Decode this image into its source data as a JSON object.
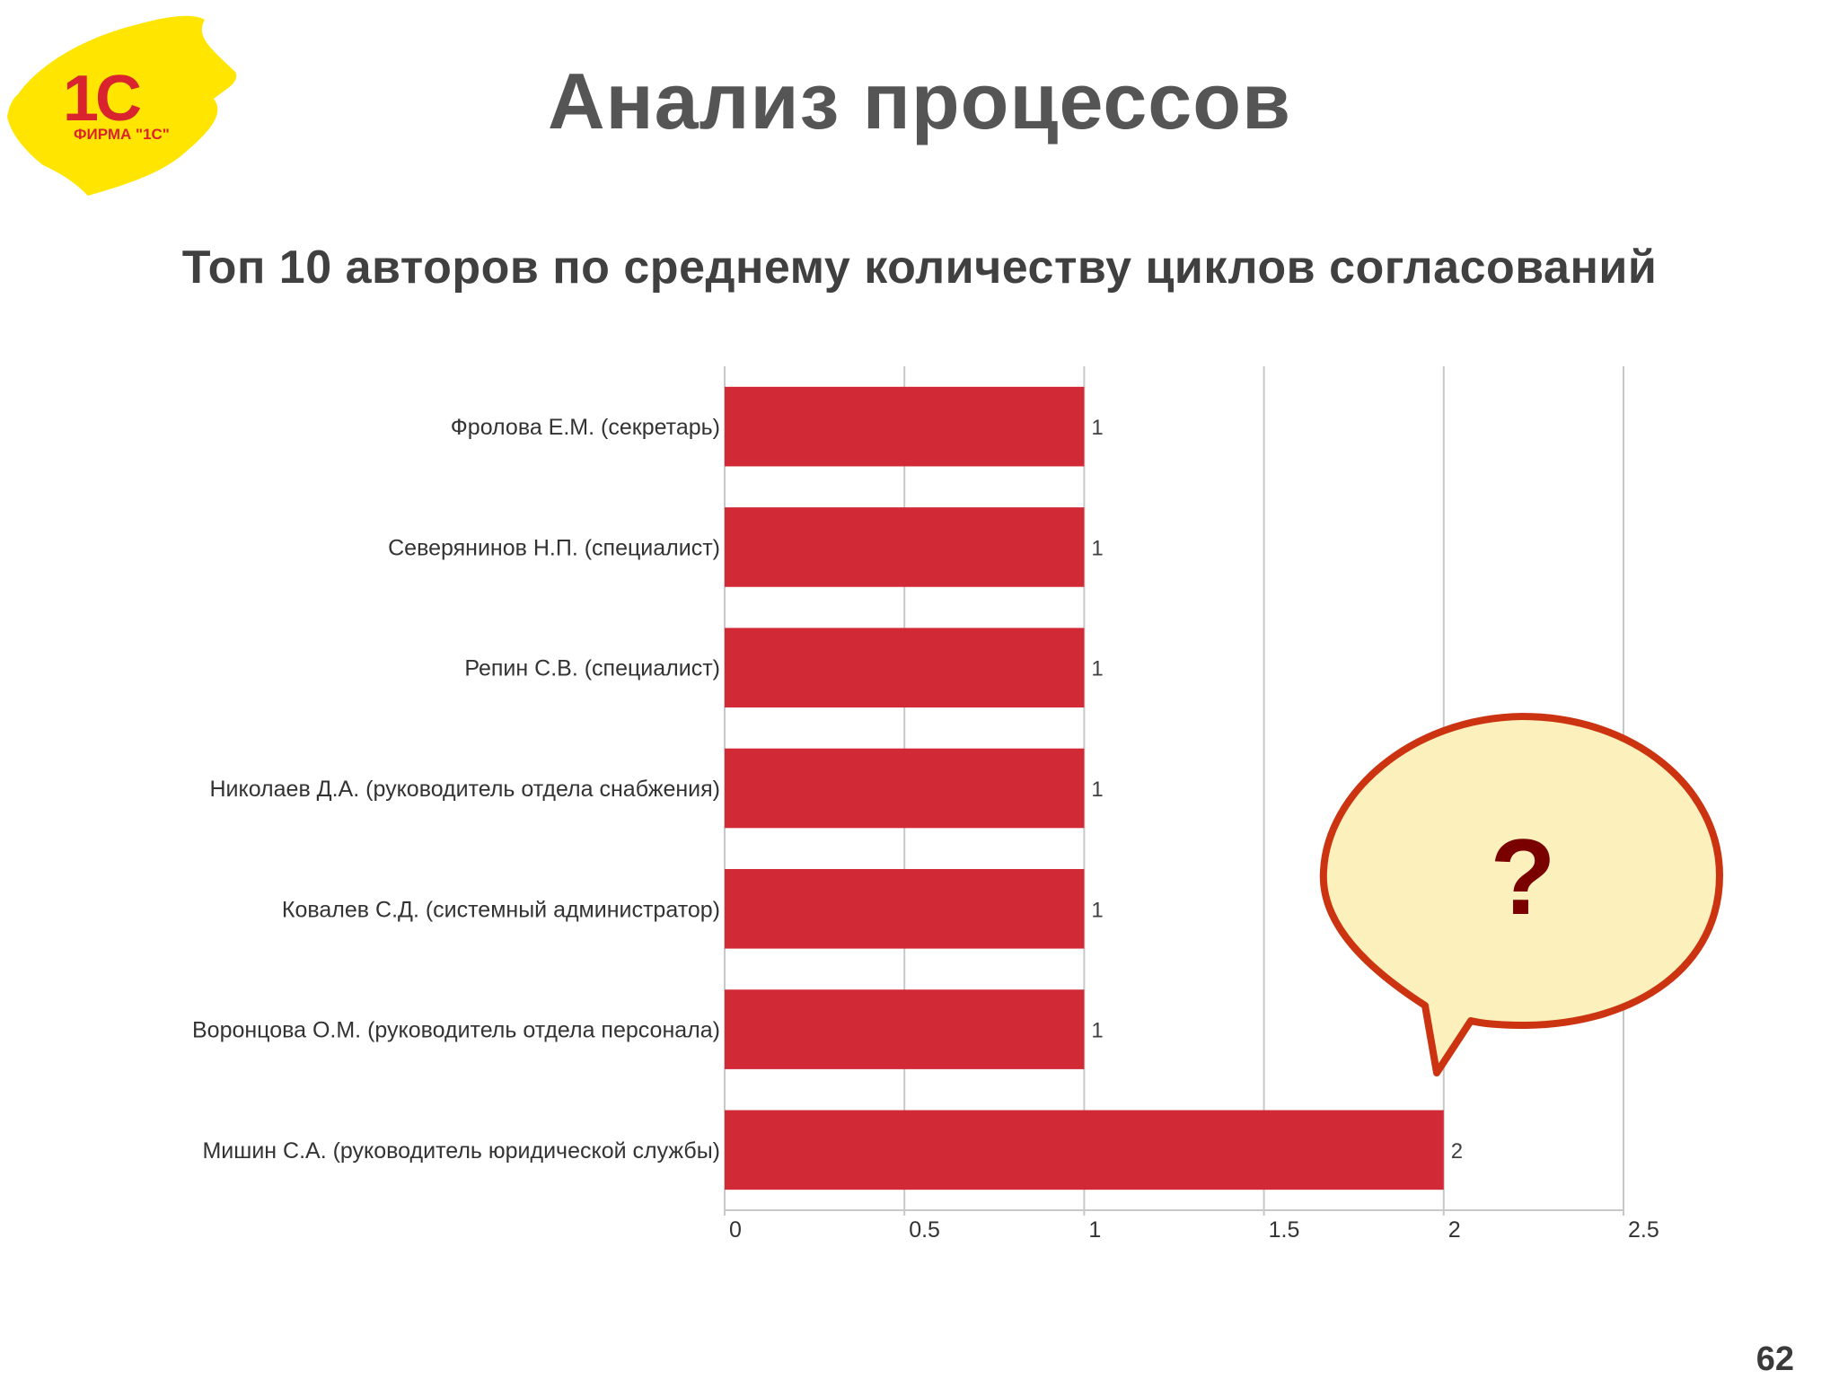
{
  "logo": {
    "mark": "1С",
    "caption": "ФИРМА \"1С\"",
    "color_bg": "#ffe500",
    "color_text": "#d9232e"
  },
  "title": "Анализ процессов",
  "page_number": "62",
  "callout": {
    "text": "?",
    "fill": "#fcf0bd",
    "stroke": "#cc3311",
    "text_color": "#7a0000"
  },
  "chart_data": {
    "type": "bar",
    "orientation": "horizontal",
    "title": "Топ 10 авторов по среднему количеству циклов согласований",
    "categories": [
      "Фролова Е.М. (секретарь)",
      "Северянинов Н.П. (специалист)",
      "Репин С.В. (специалист)",
      "Николаев Д.А. (руководитель отдела снабжения)",
      "Ковалев С.Д. (системный администратор)",
      "Воронцова О.М. (руководитель отдела персонала)",
      "Мишин С.А. (руководитель юридической службы)"
    ],
    "values": [
      1,
      1,
      1,
      1,
      1,
      1,
      2
    ],
    "data_labels": [
      "1",
      "1",
      "1",
      "1",
      "1",
      "1",
      "2"
    ],
    "xlim": [
      0,
      2.5
    ],
    "xticks": [
      0,
      0.5,
      1,
      1.5,
      2,
      2.5
    ],
    "xtick_labels": [
      "0",
      "0.5",
      "1",
      "1.5",
      "2",
      "2.5"
    ],
    "grid": true,
    "bar_color": "#d12a36",
    "xlabel": "",
    "ylabel": ""
  }
}
